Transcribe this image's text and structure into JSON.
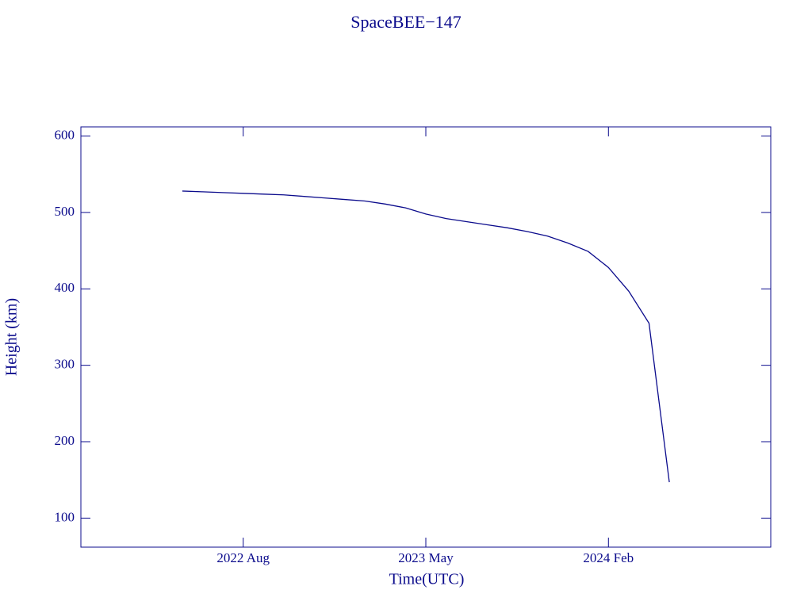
{
  "chart_data": {
    "type": "line",
    "title": "SpaceBEE−147",
    "x_label": "Time(UTC)",
    "y_label": "Height (km)",
    "x": [
      "2022-05",
      "2022-06",
      "2022-07",
      "2022-08",
      "2022-09",
      "2022-10",
      "2022-11",
      "2022-12",
      "2023-01",
      "2023-02",
      "2023-03",
      "2023-04",
      "2023-05",
      "2023-06",
      "2023-07",
      "2023-08",
      "2023-09",
      "2023-10",
      "2023-11",
      "2023-12",
      "2024-01",
      "2024-02",
      "2024-03",
      "2024-04",
      "2024-05"
    ],
    "series": [
      {
        "name": "SpaceBEE−147",
        "color": "#0b0b8c",
        "values": [
          528,
          527,
          526,
          525,
          524,
          523,
          521,
          519,
          517,
          515,
          511,
          506,
          498,
          492,
          488,
          484,
          480,
          475,
          469,
          460,
          449,
          428,
          397,
          355,
          147
        ]
      }
    ],
    "xlim": [
      "2021-12",
      "2024-10"
    ],
    "xticks": [
      {
        "value": "2022-08",
        "label": "2022 Aug"
      },
      {
        "value": "2023-05",
        "label": "2023 May"
      },
      {
        "value": "2024-02",
        "label": "2024 Feb"
      }
    ],
    "ylim": [
      62,
      612
    ],
    "yticks": [
      100,
      200,
      300,
      400,
      500,
      600
    ]
  }
}
